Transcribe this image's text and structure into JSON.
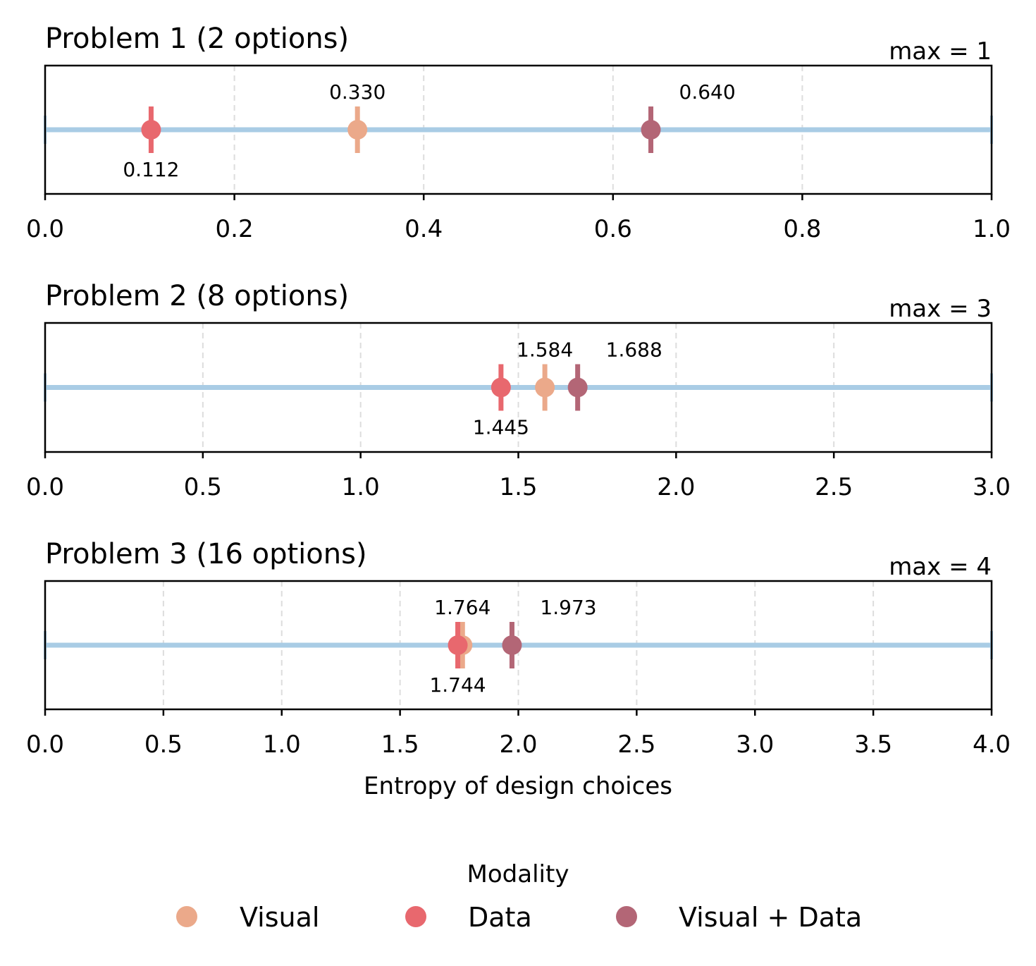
{
  "chart_data": [
    {
      "type": "scatter",
      "title": "Problem 1 (2 options)",
      "max_label": "max = 1",
      "xlim": [
        0,
        1.0
      ],
      "xticks": [
        "0.0",
        "0.2",
        "0.4",
        "0.6",
        "0.8",
        "1.0"
      ],
      "xtick_values": [
        0,
        0.2,
        0.4,
        0.6,
        0.8,
        1.0
      ],
      "xlabel": "",
      "grid": "x-dashed",
      "points": [
        {
          "series": "Visual",
          "value": 0.33,
          "label": "0.330",
          "label_pos": "above"
        },
        {
          "series": "Data",
          "value": 0.112,
          "label": "0.112",
          "label_pos": "below"
        },
        {
          "series": "Visual + Data",
          "value": 0.64,
          "label": "0.640",
          "label_pos": "above-right"
        }
      ]
    },
    {
      "type": "scatter",
      "title": "Problem 2 (8 options)",
      "max_label": "max = 3",
      "xlim": [
        0,
        3.0
      ],
      "xticks": [
        "0.0",
        "0.5",
        "1.0",
        "1.5",
        "2.0",
        "2.5",
        "3.0"
      ],
      "xtick_values": [
        0,
        0.5,
        1.0,
        1.5,
        2.0,
        2.5,
        3.0
      ],
      "xlabel": "",
      "grid": "x-dashed",
      "points": [
        {
          "series": "Visual",
          "value": 1.584,
          "label": "1.584",
          "label_pos": "above"
        },
        {
          "series": "Data",
          "value": 1.445,
          "label": "1.445",
          "label_pos": "below"
        },
        {
          "series": "Visual + Data",
          "value": 1.688,
          "label": "1.688",
          "label_pos": "above-right"
        }
      ]
    },
    {
      "type": "scatter",
      "title": "Problem 3 (16 options)",
      "max_label": "max = 4",
      "xlim": [
        0,
        4.0
      ],
      "xticks": [
        "0.0",
        "0.5",
        "1.0",
        "1.5",
        "2.0",
        "2.5",
        "3.0",
        "3.5",
        "4.0"
      ],
      "xtick_values": [
        0,
        0.5,
        1.0,
        1.5,
        2.0,
        2.5,
        3.0,
        3.5,
        4.0
      ],
      "xlabel": "Entropy of design choices",
      "grid": "x-dashed",
      "points": [
        {
          "series": "Visual",
          "value": 1.764,
          "label": "1.764",
          "label_pos": "above"
        },
        {
          "series": "Data",
          "value": 1.744,
          "label": "1.744",
          "label_pos": "below"
        },
        {
          "series": "Visual + Data",
          "value": 1.973,
          "label": "1.973",
          "label_pos": "above-right"
        }
      ]
    }
  ],
  "legend": {
    "title": "Modality",
    "placement": "bottom-center",
    "items": [
      {
        "name": "Visual",
        "color": "#EBA98A"
      },
      {
        "name": "Data",
        "color": "#E8686E"
      },
      {
        "name": "Visual + Data",
        "color": "#B36676"
      }
    ]
  },
  "colors": {
    "range_line": "#A9CCE5",
    "grid": "#DDDDDD",
    "Visual": "#EBA98A",
    "Data": "#E8686E",
    "Visual + Data": "#B36676"
  }
}
